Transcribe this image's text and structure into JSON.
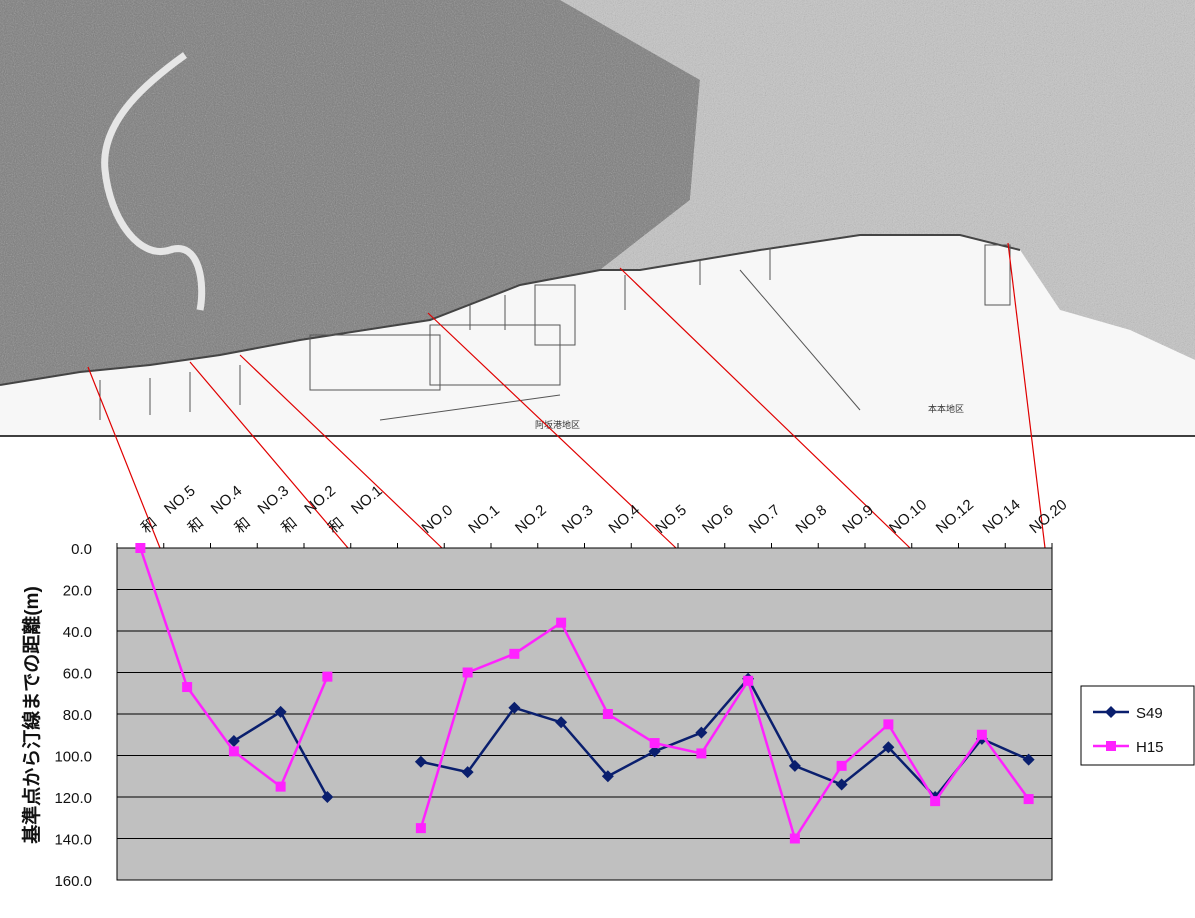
{
  "map": {
    "labels": [
      "阿坂港地区",
      "本本地区"
    ]
  },
  "chart_data": {
    "type": "line",
    "categories": [
      "和　NO.5",
      "和　NO.4",
      "和　NO.3",
      "和　NO.2",
      "和　NO.1",
      "",
      "NO.0",
      "NO.1",
      "NO.2",
      "NO.3",
      "NO.4",
      "NO.5",
      "NO.6",
      "NO.7",
      "NO.8",
      "NO.9",
      "NO.10",
      "NO.12",
      "NO.14",
      "NO.20"
    ],
    "ylabel": "基準点から汀線までの距離(m)",
    "ylim": [
      0,
      160
    ],
    "y_reversed": true,
    "yticks": [
      "0.0",
      "20.0",
      "40.0",
      "60.0",
      "80.0",
      "100.0",
      "120.0",
      "140.0",
      "160.0"
    ],
    "grid": true,
    "legend_position": "right",
    "series": [
      {
        "name": "S49",
        "color": "#0a1f6e",
        "marker": "diamond",
        "values": [
          null,
          null,
          93,
          79,
          120,
          null,
          103,
          108,
          77,
          84,
          110,
          98,
          89,
          63,
          105,
          114,
          96,
          120,
          92,
          102
        ]
      },
      {
        "name": "H15",
        "color": "#ff22ff",
        "marker": "square",
        "values": [
          0,
          67,
          98,
          115,
          62,
          null,
          135,
          60,
          51,
          36,
          80,
          94,
          99,
          64,
          140,
          105,
          85,
          122,
          90,
          121
        ]
      }
    ]
  }
}
